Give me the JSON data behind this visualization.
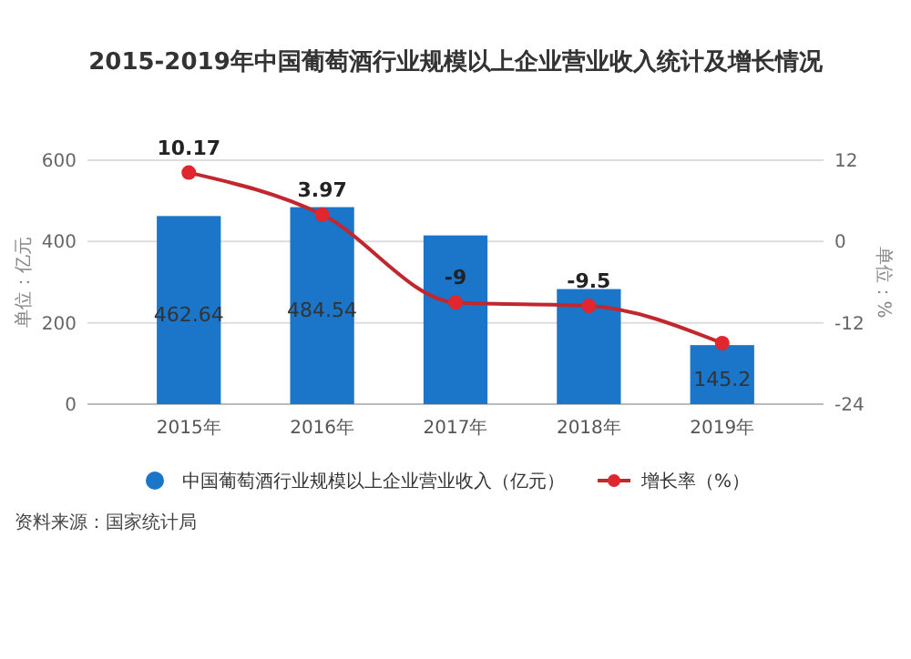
{
  "chart_data": {
    "type": "bar",
    "title": "2015-2019年中国葡萄酒行业规模以上企业营业收入统计及增长情况",
    "categories": [
      "2015年",
      "2016年",
      "2017年",
      "2018年",
      "2019年"
    ],
    "series": [
      {
        "name": "中国葡萄酒行业规模以上企业营业收入（亿元）",
        "color": "#1b75c8",
        "values": [
          462.64,
          484.54,
          415,
          283,
          145.2
        ],
        "value_labels": [
          "462.64",
          "484.54",
          null,
          null,
          "145.2"
        ]
      },
      {
        "name": "增长率（%）",
        "type": "line",
        "axis": "y2",
        "color": "#c0282e",
        "marker": "circle",
        "values": [
          10.17,
          3.97,
          -9,
          -9.5,
          -15
        ],
        "value_labels": [
          "10.17",
          "3.97",
          "-9",
          "-9.5",
          null
        ]
      }
    ],
    "ylabel": "单位：亿元",
    "y2label": "单位：%",
    "ylim": [
      0,
      600
    ],
    "yticks": [
      0,
      200,
      400,
      600
    ],
    "y2lim": [
      -24,
      12
    ],
    "y2ticks": [
      -24,
      -12,
      0,
      12
    ],
    "grid": "y",
    "legend": "bottom",
    "annotations": [
      "资料来源：国家统计局"
    ]
  }
}
